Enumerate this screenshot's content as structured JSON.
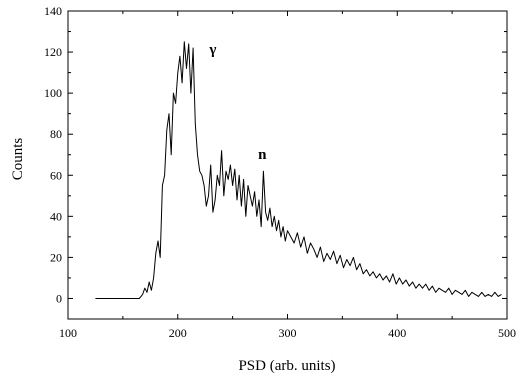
{
  "chart_data": {
    "type": "line",
    "title": "",
    "xlabel": "PSD (arb. units)",
    "ylabel": "Counts",
    "xlim": [
      100,
      500
    ],
    "ylim": [
      -10,
      140
    ],
    "xticks": [
      100,
      200,
      300,
      400,
      500
    ],
    "yticks": [
      0,
      20,
      40,
      60,
      80,
      100,
      120,
      140
    ],
    "grid": false,
    "line_color": "#000000",
    "annotations": [
      {
        "text": "γ",
        "x": 232,
        "y": 119
      },
      {
        "text": "n",
        "x": 277,
        "y": 68
      }
    ],
    "series": [
      {
        "x": [
          125,
          130,
          135,
          140,
          145,
          150,
          155,
          160,
          165,
          168,
          170,
          172,
          174,
          176,
          178,
          180,
          182,
          184,
          186,
          188,
          190,
          192,
          194,
          196,
          198,
          200,
          202,
          204,
          206,
          208,
          210,
          212,
          214,
          216,
          218,
          220,
          222,
          224,
          226,
          228,
          230,
          232,
          234,
          236,
          238,
          240,
          242,
          244,
          246,
          248,
          250,
          252,
          254,
          256,
          258,
          260,
          262,
          264,
          266,
          268,
          270,
          272,
          274,
          276,
          278,
          280,
          282,
          284,
          286,
          288,
          290,
          292,
          294,
          296,
          298,
          300,
          303,
          306,
          309,
          312,
          315,
          318,
          321,
          324,
          327,
          330,
          333,
          336,
          339,
          342,
          345,
          348,
          351,
          354,
          357,
          360,
          363,
          366,
          369,
          372,
          375,
          378,
          381,
          384,
          387,
          390,
          393,
          396,
          399,
          402,
          405,
          408,
          411,
          414,
          417,
          420,
          423,
          426,
          429,
          432,
          435,
          438,
          441,
          444,
          447,
          450,
          453,
          456,
          459,
          462,
          465,
          468,
          471,
          474,
          477,
          480,
          483,
          486,
          489,
          492,
          495
        ],
        "y": [
          0,
          0,
          0,
          0,
          0,
          0,
          0,
          0,
          0,
          2,
          5,
          3,
          8,
          4,
          10,
          22,
          28,
          20,
          55,
          60,
          82,
          90,
          70,
          100,
          95,
          110,
          118,
          105,
          125,
          112,
          124,
          100,
          122,
          85,
          70,
          62,
          60,
          55,
          45,
          50,
          65,
          42,
          48,
          60,
          55,
          72,
          50,
          62,
          58,
          65,
          55,
          63,
          48,
          60,
          45,
          58,
          40,
          55,
          50,
          45,
          52,
          40,
          48,
          35,
          62,
          42,
          38,
          44,
          35,
          40,
          33,
          38,
          30,
          35,
          28,
          33,
          30,
          27,
          32,
          25,
          30,
          22,
          27,
          24,
          20,
          25,
          18,
          22,
          19,
          23,
          17,
          21,
          15,
          19,
          16,
          20,
          14,
          17,
          12,
          14,
          11,
          13,
          10,
          12,
          9,
          11,
          8,
          12,
          7,
          10,
          7,
          9,
          6,
          8,
          5,
          7,
          5,
          7,
          4,
          6,
          3,
          5,
          4,
          3,
          5,
          2,
          4,
          3,
          2,
          4,
          1,
          3,
          2,
          1,
          3,
          1,
          2,
          1,
          3,
          1,
          2
        ]
      }
    ]
  }
}
